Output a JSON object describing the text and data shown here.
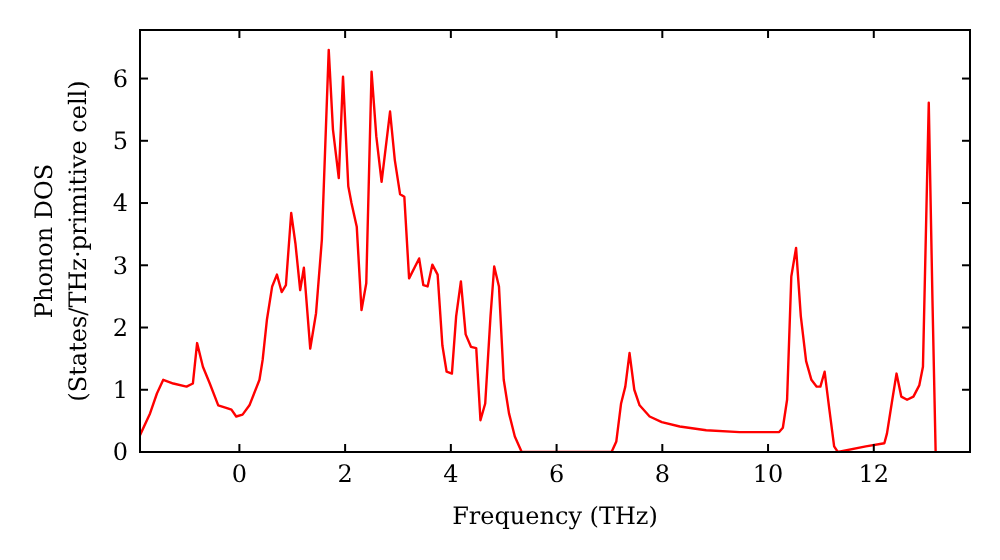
{
  "chart_data": {
    "type": "line",
    "xlabel": "Frequency (THz)",
    "ylabel": "Phonon DOS\n(States/THz·primitive cell)",
    "xlim": [
      -1.88,
      13.82
    ],
    "ylim": [
      0,
      6.78
    ],
    "xticks": [
      0,
      2,
      4,
      6,
      8,
      10,
      12
    ],
    "yticks": [
      0,
      1,
      2,
      3,
      4,
      5,
      6
    ],
    "grid": false,
    "marker": "none",
    "line_style": "solid",
    "x": [
      -1.88,
      -1.69,
      -1.56,
      -1.44,
      -1.25,
      -1.0,
      -0.88,
      -0.8,
      -0.69,
      -0.56,
      -0.4,
      -0.25,
      -0.15,
      -0.06,
      0.06,
      0.19,
      0.38,
      0.44,
      0.52,
      0.62,
      0.71,
      0.8,
      0.88,
      0.98,
      1.06,
      1.15,
      1.22,
      1.34,
      1.45,
      1.56,
      1.69,
      1.77,
      1.88,
      1.96,
      2.06,
      2.12,
      2.22,
      2.31,
      2.4,
      2.5,
      2.59,
      2.69,
      2.85,
      2.94,
      3.04,
      3.12,
      3.21,
      3.4,
      3.48,
      3.56,
      3.65,
      3.75,
      3.84,
      3.92,
      4.02,
      4.1,
      4.19,
      4.28,
      4.38,
      4.48,
      4.56,
      4.65,
      4.75,
      4.82,
      4.91,
      5.0,
      5.1,
      5.21,
      5.34,
      7.04,
      7.13,
      7.22,
      7.3,
      7.38,
      7.47,
      7.57,
      7.76,
      7.99,
      8.33,
      8.83,
      9.46,
      10.21,
      10.28,
      10.36,
      10.44,
      10.53,
      10.62,
      10.72,
      10.82,
      10.92,
      10.99,
      11.07,
      11.16,
      11.25,
      11.32,
      11.85,
      12.2,
      12.25,
      12.35,
      12.43,
      12.52,
      12.63,
      12.75,
      12.86,
      12.93,
      13.04,
      13.11,
      13.17
    ],
    "series": [
      {
        "color": "#ff0000",
        "values": [
          0.27,
          0.62,
          0.94,
          1.16,
          1.1,
          1.05,
          1.1,
          1.75,
          1.37,
          1.1,
          0.75,
          0.71,
          0.68,
          0.57,
          0.6,
          0.75,
          1.16,
          1.48,
          2.12,
          2.66,
          2.85,
          2.57,
          2.68,
          3.84,
          3.35,
          2.6,
          2.96,
          1.66,
          2.23,
          3.41,
          6.46,
          5.18,
          4.4,
          6.03,
          4.27,
          4.0,
          3.62,
          2.28,
          2.71,
          6.11,
          5.07,
          4.34,
          5.47,
          4.69,
          4.14,
          4.1,
          2.79,
          3.11,
          2.68,
          2.66,
          3.01,
          2.85,
          1.71,
          1.29,
          1.26,
          2.18,
          2.74,
          1.89,
          1.69,
          1.67,
          0.51,
          0.78,
          2.18,
          2.98,
          2.66,
          1.16,
          0.62,
          0.25,
          0,
          0,
          0.17,
          0.78,
          1.05,
          1.59,
          1.0,
          0.75,
          0.57,
          0.48,
          0.41,
          0.35,
          0.32,
          0.32,
          0.39,
          0.84,
          2.82,
          3.28,
          2.18,
          1.46,
          1.16,
          1.05,
          1.05,
          1.29,
          0.68,
          0.09,
          0,
          0.09,
          0.14,
          0.3,
          0.84,
          1.26,
          0.89,
          0.84,
          0.89,
          1.07,
          1.37,
          5.61,
          2.44,
          0
        ]
      }
    ]
  }
}
